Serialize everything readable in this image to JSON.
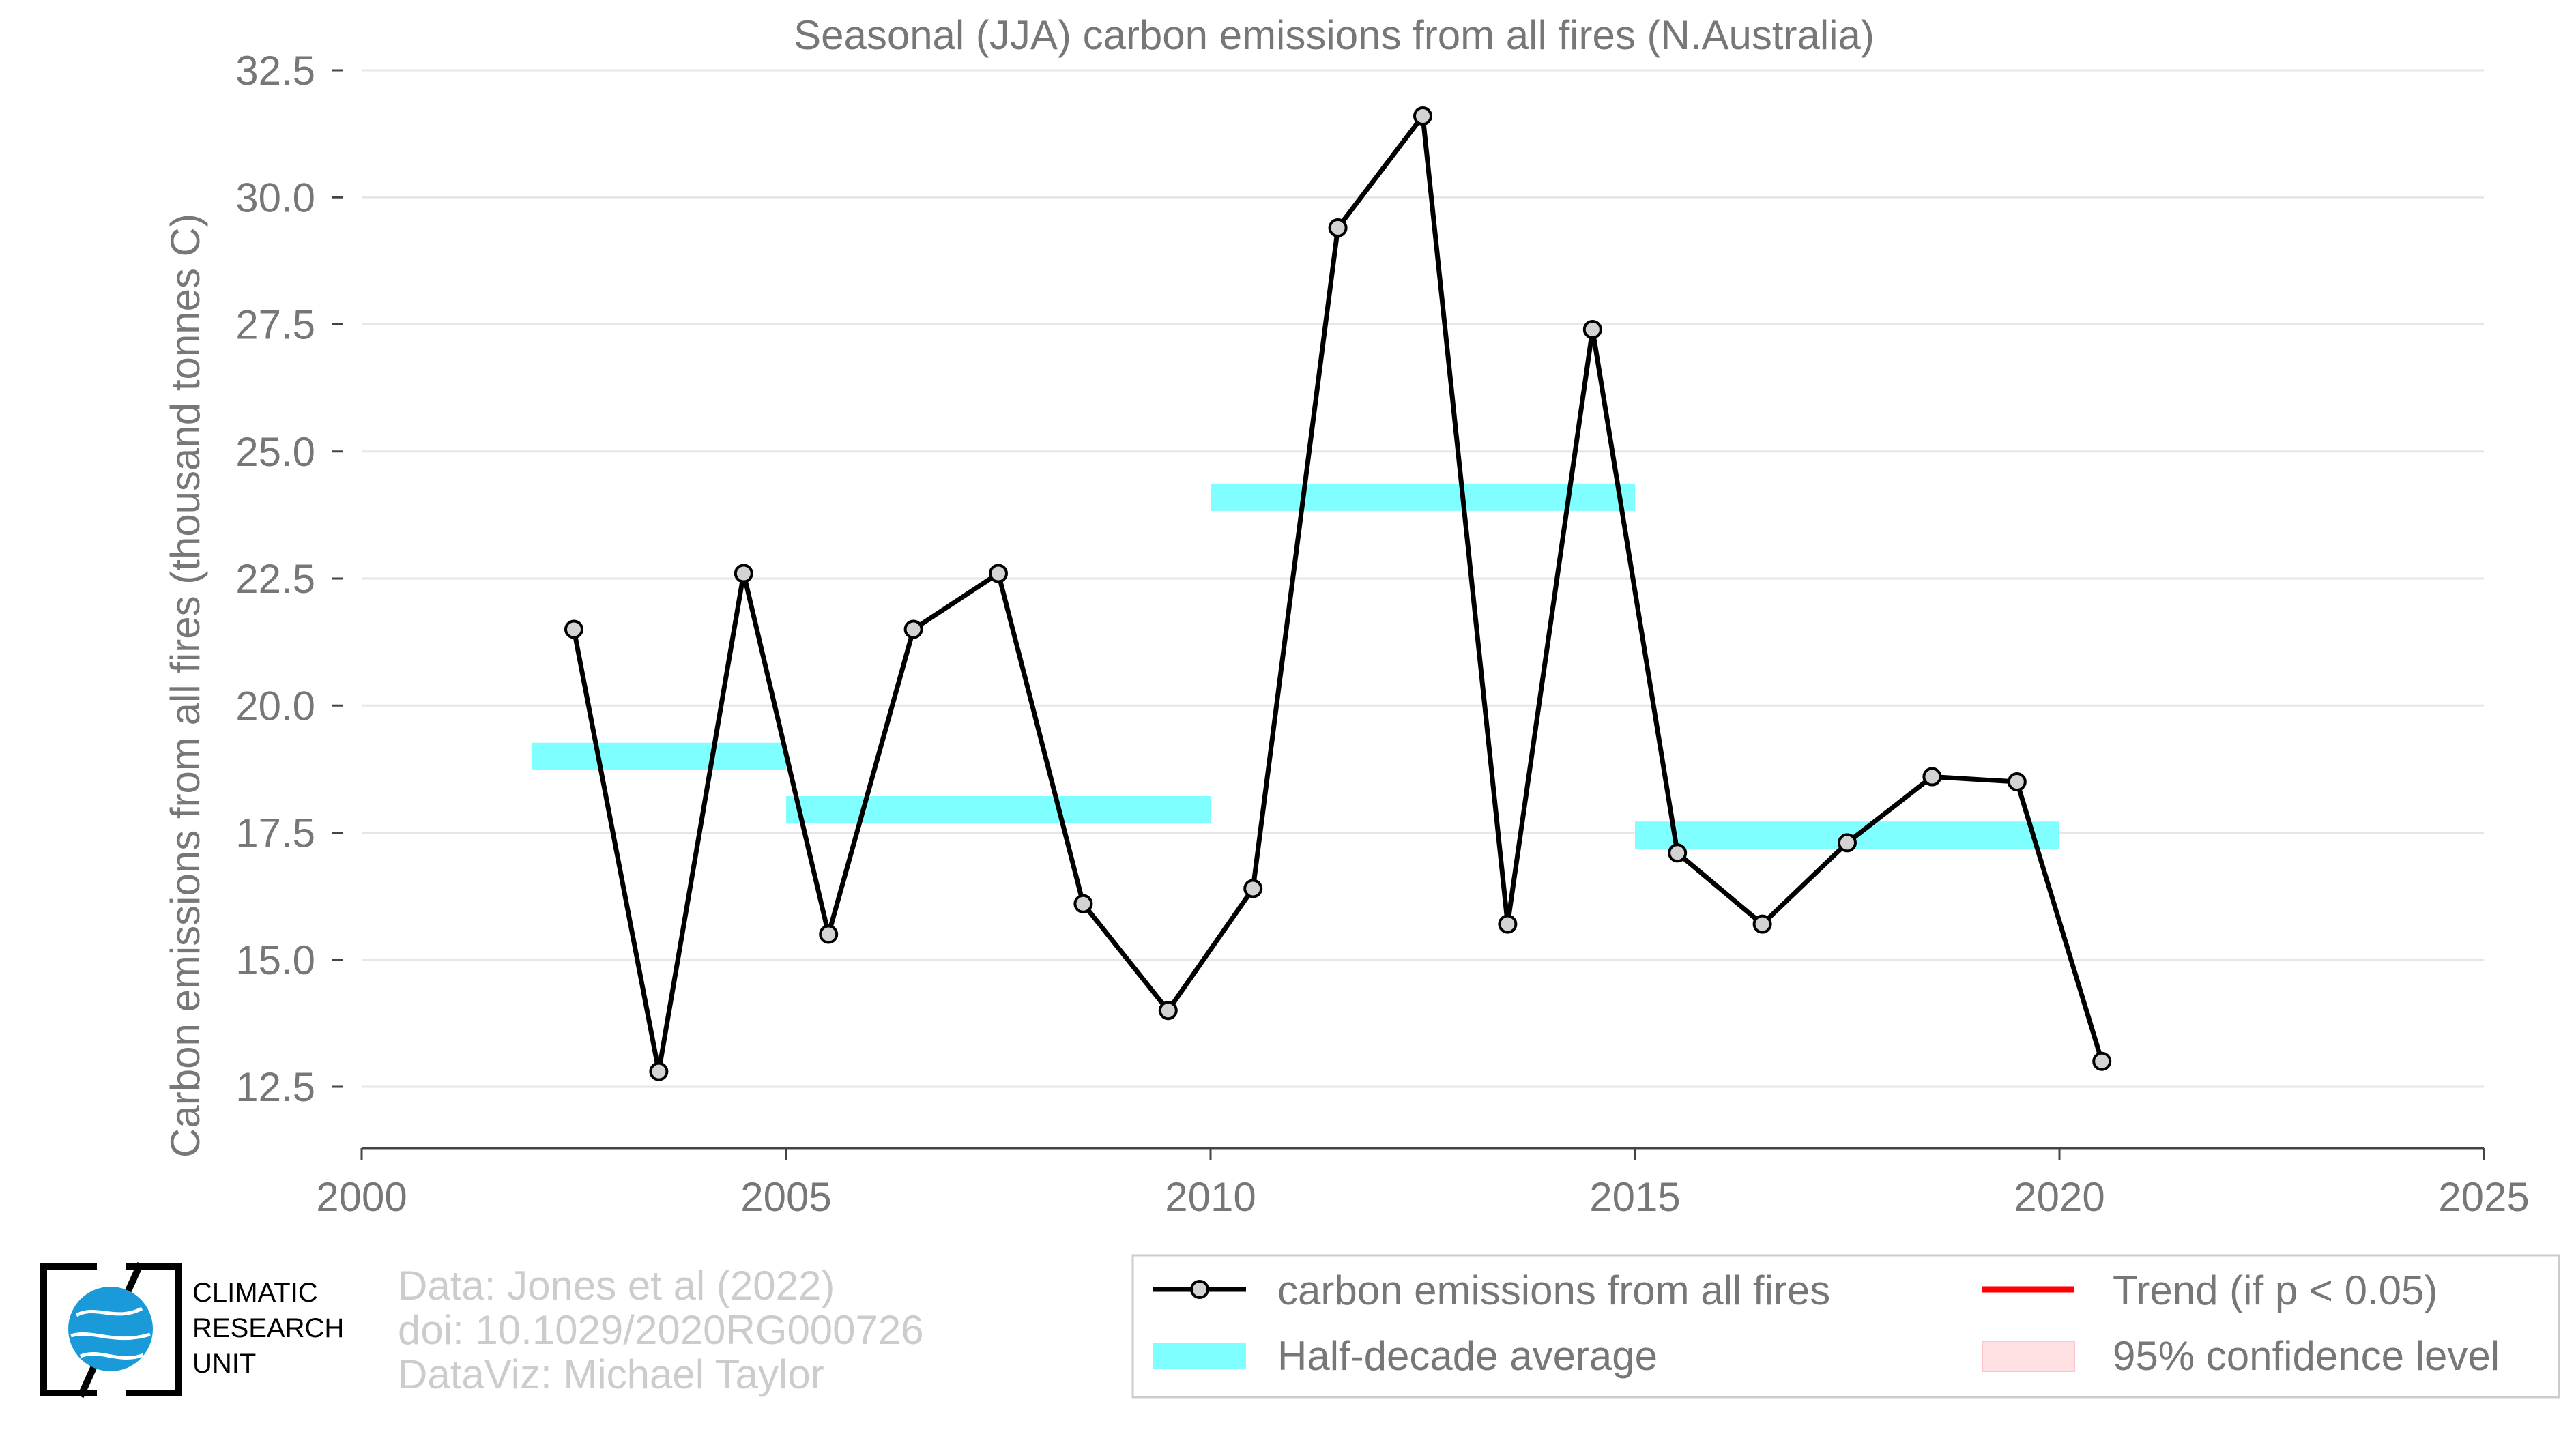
{
  "chart_data": {
    "type": "line",
    "title": "Seasonal (JJA) carbon emissions from all fires (N.Australia)",
    "ylabel": "Carbon emissions from all fires (thousand tonnes C)",
    "xlabel": "",
    "xlim": [
      2000,
      2025
    ],
    "ylim": [
      12.5,
      32.5
    ],
    "x_ticks": [
      "2000",
      "2005",
      "2010",
      "2015",
      "2020",
      "2025"
    ],
    "x_tick_values": [
      2000,
      2005,
      2010,
      2015,
      2020,
      2025
    ],
    "y_ticks": [
      "12.5",
      "15.0",
      "17.5",
      "20.0",
      "22.5",
      "25.0",
      "27.5",
      "30.0",
      "32.5"
    ],
    "y_tick_values": [
      12.5,
      15.0,
      17.5,
      20.0,
      22.5,
      25.0,
      27.5,
      30.0,
      32.5
    ],
    "grid": "horizontal",
    "series": [
      {
        "name": "carbon emissions from all fires",
        "color": "#000000",
        "marker_fill": "#d3d3d3",
        "x": [
          2002.5,
          2003.5,
          2004.5,
          2005.5,
          2006.5,
          2007.5,
          2008.5,
          2009.5,
          2010.5,
          2011.5,
          2012.5,
          2013.5,
          2014.5,
          2015.5,
          2016.5,
          2017.5,
          2018.5,
          2019.5,
          2020.5
        ],
        "values": [
          21.5,
          12.8,
          22.6,
          15.5,
          21.5,
          22.6,
          16.1,
          14.0,
          16.4,
          29.4,
          31.6,
          15.7,
          27.4,
          17.1,
          15.7,
          17.3,
          18.6,
          18.5,
          13.0
        ]
      }
    ],
    "half_decade_averages": {
      "name": "Half-decade average",
      "color": "#7fffff",
      "segments": [
        {
          "start": 2002,
          "end": 2005,
          "value": 19.0
        },
        {
          "start": 2005,
          "end": 2010,
          "value": 17.95
        },
        {
          "start": 2010,
          "end": 2015,
          "value": 24.1
        },
        {
          "start": 2015,
          "end": 2020,
          "value": 17.45
        }
      ]
    },
    "legend": {
      "placement": "bottom-right",
      "items": [
        {
          "label": "carbon emissions from all fires",
          "kind": "line-marker",
          "color": "#000000"
        },
        {
          "label": "Trend (if p < 0.05)",
          "kind": "line",
          "color": "#ff0000"
        },
        {
          "label": "Half-decade average",
          "kind": "band",
          "color": "#7fffff"
        },
        {
          "label": "95% confidence level",
          "kind": "patch",
          "color": "#ffe0e3"
        }
      ]
    },
    "credits": [
      "Data: Jones et al (2022)",
      "doi: 10.1029/2020RG000726",
      "DataViz: Michael Taylor"
    ],
    "logo": {
      "icon": "globe-icon",
      "lines": [
        "CLIMATIC",
        "RESEARCH",
        "UNIT"
      ]
    }
  }
}
